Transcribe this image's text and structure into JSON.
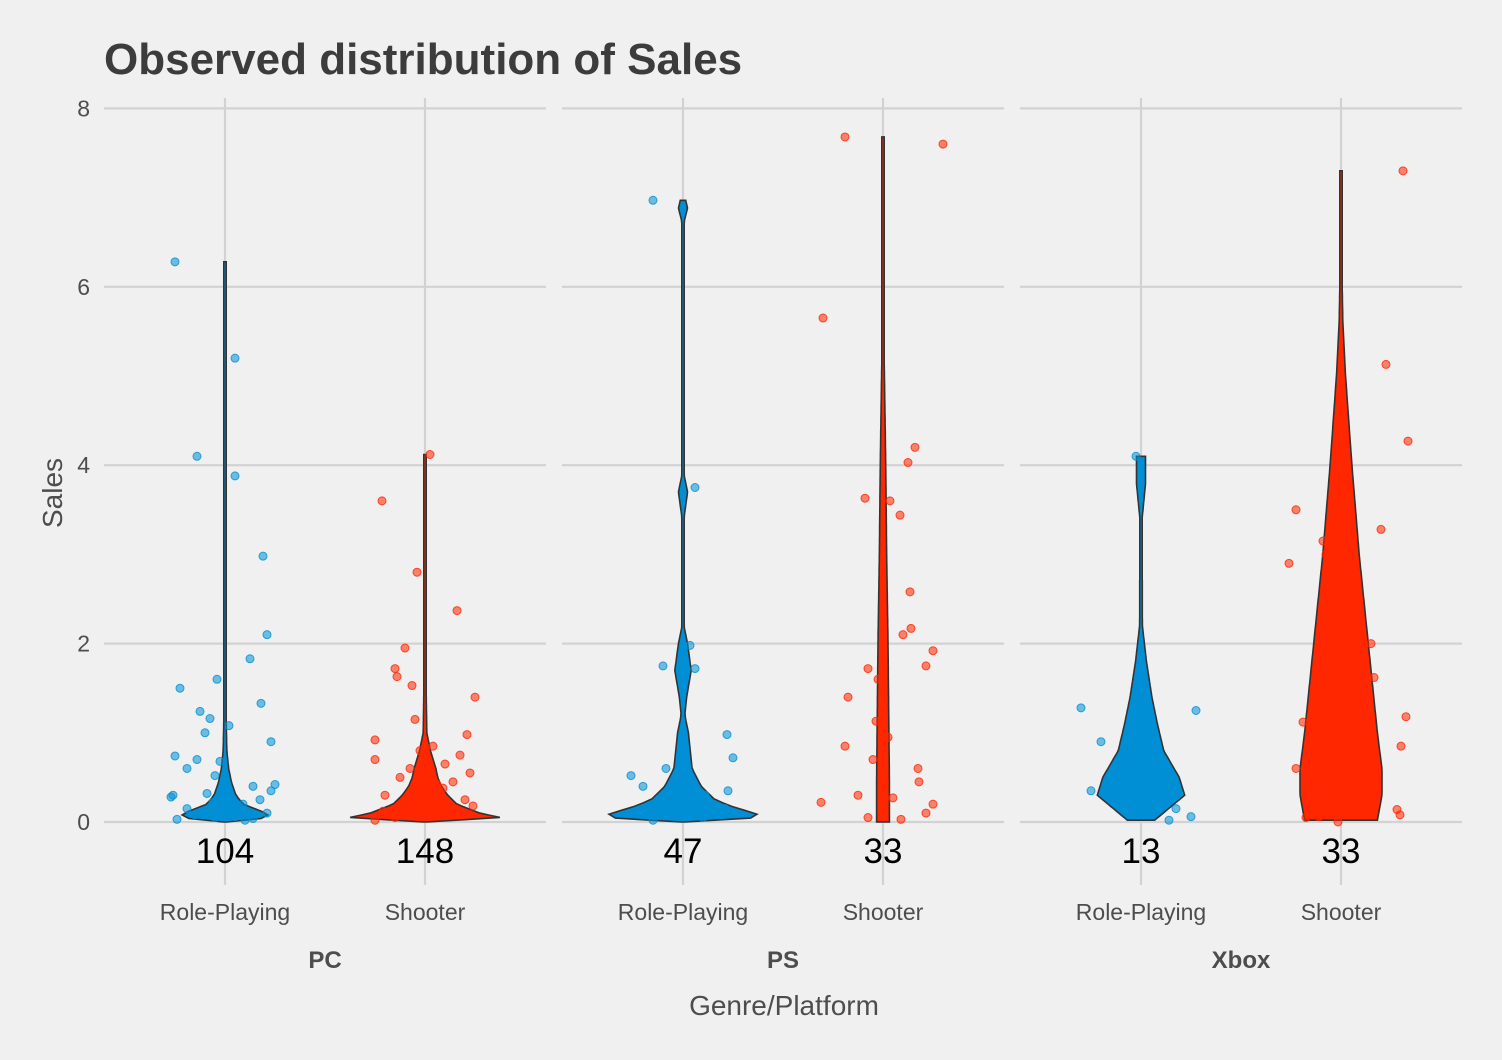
{
  "chart_data": {
    "type": "violin",
    "title": "Observed distribution of Sales",
    "xlabel": "Genre/Platform",
    "ylabel": "Sales",
    "ylim": [
      0,
      8
    ],
    "yticks": [
      0,
      2,
      4,
      6,
      8
    ],
    "categories": [
      "Role-Playing",
      "Shooter"
    ],
    "colors": {
      "Role-Playing": "#008fd5",
      "Shooter": "#ff2700"
    },
    "grid": true,
    "legend": "none",
    "panels": [
      {
        "platform": "PC",
        "groups": [
          {
            "genre": "Role-Playing",
            "n": "104",
            "max": 6.28,
            "density": [
              [
                0.0,
                0.02
              ],
              [
                0.05,
                0.5
              ],
              [
                0.1,
                0.45
              ],
              [
                0.2,
                0.2
              ],
              [
                0.3,
                0.12
              ],
              [
                0.45,
                0.07
              ],
              [
                0.6,
                0.04
              ],
              [
                0.8,
                0.02
              ],
              [
                1.2,
                0.012
              ],
              [
                2.0,
                0.01
              ],
              [
                4.0,
                0.008
              ],
              [
                6.28,
                0.005
              ]
            ],
            "points": [
              [
                0.03,
                -0.48
              ],
              [
                0.08,
                -0.3
              ],
              [
                0.12,
                -0.2
              ],
              [
                0.05,
                -0.1
              ],
              [
                0.18,
                0.05
              ],
              [
                0.02,
                0.2
              ],
              [
                0.25,
                0.35
              ],
              [
                0.1,
                0.42
              ],
              [
                0.04,
                0.28
              ],
              [
                0.15,
                -0.38
              ],
              [
                0.3,
                -0.52
              ],
              [
                0.28,
                -0.54
              ],
              [
                0.35,
                0.46
              ],
              [
                0.4,
                0.28
              ],
              [
                0.42,
                0.5
              ],
              [
                0.2,
                0.18
              ],
              [
                0.22,
                -0.12
              ],
              [
                0.06,
                0.1
              ],
              [
                0.32,
                -0.18
              ],
              [
                0.52,
                -0.1
              ],
              [
                0.6,
                -0.38
              ],
              [
                0.68,
                -0.05
              ],
              [
                0.7,
                -0.28
              ],
              [
                0.74,
                -0.5
              ],
              [
                0.9,
                0.46
              ],
              [
                1.0,
                -0.2
              ],
              [
                1.08,
                0.04
              ],
              [
                1.16,
                -0.15
              ],
              [
                1.24,
                -0.25
              ],
              [
                1.33,
                0.36
              ],
              [
                1.5,
                -0.45
              ],
              [
                1.6,
                -0.08
              ],
              [
                1.83,
                0.25
              ],
              [
                2.1,
                0.42
              ],
              [
                2.98,
                0.38
              ],
              [
                3.88,
                0.1
              ],
              [
                4.1,
                -0.28
              ],
              [
                5.2,
                0.1
              ],
              [
                6.28,
                -0.5
              ]
            ]
          },
          {
            "genre": "Shooter",
            "n": "148",
            "max": 4.12,
            "density": [
              [
                0.0,
                0.02
              ],
              [
                0.05,
                0.83
              ],
              [
                0.1,
                0.6
              ],
              [
                0.2,
                0.35
              ],
              [
                0.3,
                0.25
              ],
              [
                0.4,
                0.18
              ],
              [
                0.5,
                0.14
              ],
              [
                0.6,
                0.12
              ],
              [
                0.7,
                0.09
              ],
              [
                0.8,
                0.06
              ],
              [
                0.9,
                0.04
              ],
              [
                1.0,
                0.02
              ],
              [
                1.5,
                0.012
              ],
              [
                2.0,
                0.01
              ],
              [
                3.0,
                0.008
              ],
              [
                4.12,
                0.005
              ]
            ],
            "points": [
              [
                0.02,
                -0.5
              ],
              [
                0.05,
                -0.3
              ],
              [
                0.1,
                0.1
              ],
              [
                0.15,
                0.3
              ],
              [
                0.2,
                -0.2
              ],
              [
                0.25,
                0.4
              ],
              [
                0.3,
                -0.4
              ],
              [
                0.35,
                0.05
              ],
              [
                0.4,
                -0.1
              ],
              [
                0.42,
                0.12
              ],
              [
                0.45,
                0.28
              ],
              [
                0.5,
                -0.25
              ],
              [
                0.55,
                0.45
              ],
              [
                0.6,
                -0.15
              ],
              [
                0.65,
                0.2
              ],
              [
                0.7,
                -0.5
              ],
              [
                0.75,
                0.35
              ],
              [
                0.8,
                -0.05
              ],
              [
                0.85,
                0.08
              ],
              [
                0.92,
                -0.5
              ],
              [
                0.98,
                0.42
              ],
              [
                1.15,
                -0.1
              ],
              [
                1.4,
                0.5
              ],
              [
                1.53,
                -0.13
              ],
              [
                1.63,
                -0.28
              ],
              [
                1.72,
                -0.3
              ],
              [
                1.95,
                -0.2
              ],
              [
                2.37,
                0.32
              ],
              [
                2.8,
                -0.08
              ],
              [
                3.6,
                -0.43
              ],
              [
                4.12,
                0.05
              ],
              [
                0.08,
                0.22
              ],
              [
                0.12,
                -0.42
              ],
              [
                0.18,
                0.48
              ],
              [
                0.28,
                -0.05
              ],
              [
                0.38,
                0.18
              ]
            ]
          }
        ]
      },
      {
        "platform": "PS",
        "groups": [
          {
            "genre": "Role-Playing",
            "n": "47",
            "max": 6.97,
            "density": [
              [
                0.0,
                0.02
              ],
              [
                0.05,
                0.85
              ],
              [
                0.1,
                0.8
              ],
              [
                0.15,
                0.6
              ],
              [
                0.25,
                0.35
              ],
              [
                0.4,
                0.2
              ],
              [
                0.6,
                0.1
              ],
              [
                0.8,
                0.08
              ],
              [
                1.0,
                0.06
              ],
              [
                1.2,
                0.02
              ],
              [
                1.4,
                0.04
              ],
              [
                1.7,
                0.09
              ],
              [
                2.0,
                0.05
              ],
              [
                2.2,
                0.01
              ],
              [
                3.4,
                0.01
              ],
              [
                3.7,
                0.05
              ],
              [
                3.9,
                0.01
              ],
              [
                6.7,
                0.005
              ],
              [
                6.88,
                0.05
              ],
              [
                6.97,
                0.03
              ]
            ],
            "points": [
              [
                0.02,
                -0.3
              ],
              [
                0.05,
                0.2
              ],
              [
                0.1,
                -0.5
              ],
              [
                0.15,
                0.42
              ],
              [
                0.2,
                -0.1
              ],
              [
                0.3,
                0.22
              ],
              [
                0.35,
                0.45
              ],
              [
                0.4,
                -0.4
              ],
              [
                0.52,
                -0.52
              ],
              [
                0.6,
                -0.17
              ],
              [
                0.72,
                0.5
              ],
              [
                0.98,
                0.44
              ],
              [
                1.72,
                0.12
              ],
              [
                1.75,
                -0.2
              ],
              [
                1.98,
                0.07
              ],
              [
                3.75,
                0.12
              ],
              [
                6.97,
                -0.3
              ]
            ]
          },
          {
            "genre": "Shooter",
            "n": "33",
            "max": 7.68,
            "density": [
              [
                0.0,
                0.07
              ],
              [
                0.5,
                0.07
              ],
              [
                1.0,
                0.065
              ],
              [
                1.5,
                0.06
              ],
              [
                2.0,
                0.055
              ],
              [
                3.0,
                0.04
              ],
              [
                4.0,
                0.03
              ],
              [
                4.7,
                0.02
              ],
              [
                5.5,
                0.008
              ],
              [
                6.5,
                0.005
              ],
              [
                7.68,
                0.005
              ]
            ],
            "points": [
              [
                0.03,
                0.18
              ],
              [
                0.05,
                -0.15
              ],
              [
                0.07,
                0.0
              ],
              [
                0.1,
                0.43
              ],
              [
                0.2,
                0.5
              ],
              [
                0.22,
                -0.62
              ],
              [
                0.27,
                0.1
              ],
              [
                0.3,
                -0.25
              ],
              [
                0.45,
                0.36
              ],
              [
                0.6,
                0.35
              ],
              [
                0.7,
                -0.1
              ],
              [
                0.85,
                -0.38
              ],
              [
                0.95,
                0.05
              ],
              [
                1.13,
                -0.07
              ],
              [
                1.4,
                -0.35
              ],
              [
                1.6,
                -0.05
              ],
              [
                1.72,
                -0.15
              ],
              [
                1.75,
                0.43
              ],
              [
                1.92,
                0.5
              ],
              [
                2.1,
                0.2
              ],
              [
                2.17,
                0.28
              ],
              [
                2.58,
                0.27
              ],
              [
                3.44,
                0.17
              ],
              [
                3.6,
                0.07
              ],
              [
                3.63,
                -0.18
              ],
              [
                4.03,
                0.25
              ],
              [
                4.2,
                0.32
              ],
              [
                5.65,
                -0.6
              ],
              [
                7.6,
                0.6
              ],
              [
                7.68,
                -0.38
              ]
            ]
          }
        ]
      },
      {
        "platform": "Xbox",
        "groups": [
          {
            "genre": "Role-Playing",
            "n": "13",
            "max": 4.1,
            "density": [
              [
                0.02,
                0.15
              ],
              [
                0.3,
                0.48
              ],
              [
                0.5,
                0.42
              ],
              [
                0.8,
                0.25
              ],
              [
                1.1,
                0.18
              ],
              [
                1.4,
                0.12
              ],
              [
                1.8,
                0.06
              ],
              [
                2.2,
                0.015
              ],
              [
                3.4,
                0.012
              ],
              [
                3.8,
                0.05
              ],
              [
                4.08,
                0.05
              ]
            ],
            "points": [
              [
                0.02,
                0.28
              ],
              [
                0.06,
                0.5
              ],
              [
                0.15,
                0.35
              ],
              [
                0.35,
                -0.5
              ],
              [
                0.9,
                -0.4
              ],
              [
                1.25,
                0.55
              ],
              [
                1.28,
                -0.6
              ],
              [
                4.1,
                -0.05
              ]
            ]
          },
          {
            "genre": "Shooter",
            "n": "33",
            "max": 7.3,
            "density": [
              [
                0.02,
                0.4
              ],
              [
                0.3,
                0.45
              ],
              [
                0.6,
                0.45
              ],
              [
                1.0,
                0.4
              ],
              [
                1.5,
                0.35
              ],
              [
                2.0,
                0.3
              ],
              [
                2.5,
                0.25
              ],
              [
                3.0,
                0.2
              ],
              [
                4.0,
                0.12
              ],
              [
                5.0,
                0.05
              ],
              [
                5.6,
                0.02
              ],
              [
                6.2,
                0.01
              ],
              [
                7.3,
                0.005
              ]
            ],
            "points": [
              [
                0.0,
                -0.03
              ],
              [
                0.05,
                -0.35
              ],
              [
                0.06,
                -0.22
              ],
              [
                0.08,
                0.59
              ],
              [
                0.14,
                0.56
              ],
              [
                0.18,
                0.25
              ],
              [
                0.3,
                0.18
              ],
              [
                0.5,
                0.28
              ],
              [
                0.6,
                -0.45
              ],
              [
                0.7,
                0.33
              ],
              [
                0.85,
                0.6
              ],
              [
                1.12,
                -0.38
              ],
              [
                1.18,
                0.65
              ],
              [
                1.4,
                -0.2
              ],
              [
                1.62,
                0.33
              ],
              [
                2.0,
                -0.2
              ],
              [
                2.0,
                0.3
              ],
              [
                2.88,
                -0.1
              ],
              [
                2.9,
                -0.52
              ],
              [
                3.0,
                -0.15
              ],
              [
                3.15,
                -0.18
              ],
              [
                3.28,
                0.4
              ],
              [
                3.5,
                -0.45
              ],
              [
                4.27,
                0.67
              ],
              [
                5.13,
                0.45
              ],
              [
                7.3,
                0.62
              ]
            ]
          }
        ]
      }
    ]
  }
}
